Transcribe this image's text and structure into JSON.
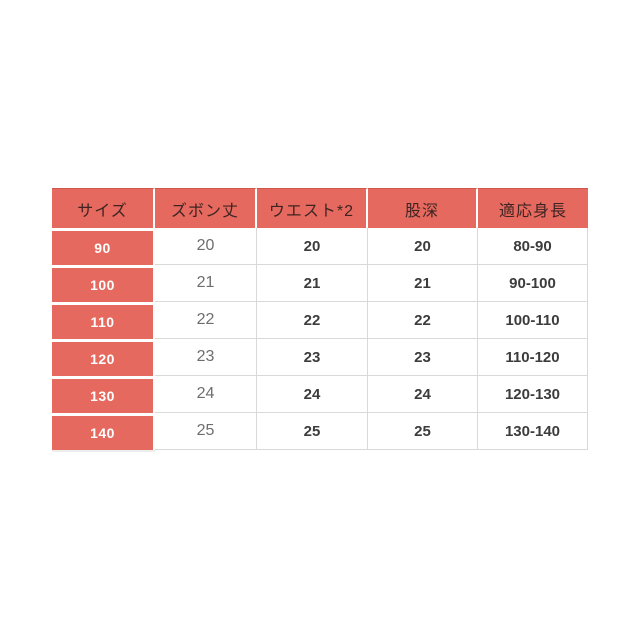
{
  "page": {
    "background_color": "#ffffff"
  },
  "style": {
    "accent_color": "#e5695e",
    "header_text_color": "#3f2423",
    "size_text_color": "#ffffff",
    "value_text_color": "#3c3c3c",
    "secondary_value_text_color": "#6e6e6e",
    "grid_border_color": "#d9d9d9",
    "gap_color": "#ffffff"
  },
  "chart_data": {
    "type": "table",
    "columns": [
      "サイズ",
      "ズボン丈",
      "ウエスト*2",
      "股深",
      "適応身長"
    ],
    "rows": [
      [
        "90",
        "20",
        "20",
        "20",
        "80-90"
      ],
      [
        "100",
        "21",
        "21",
        "21",
        "90-100"
      ],
      [
        "110",
        "22",
        "22",
        "22",
        "100-110"
      ],
      [
        "120",
        "23",
        "23",
        "23",
        "110-120"
      ],
      [
        "130",
        "24",
        "24",
        "24",
        "120-130"
      ],
      [
        "140",
        "25",
        "25",
        "25",
        "130-140"
      ]
    ]
  }
}
